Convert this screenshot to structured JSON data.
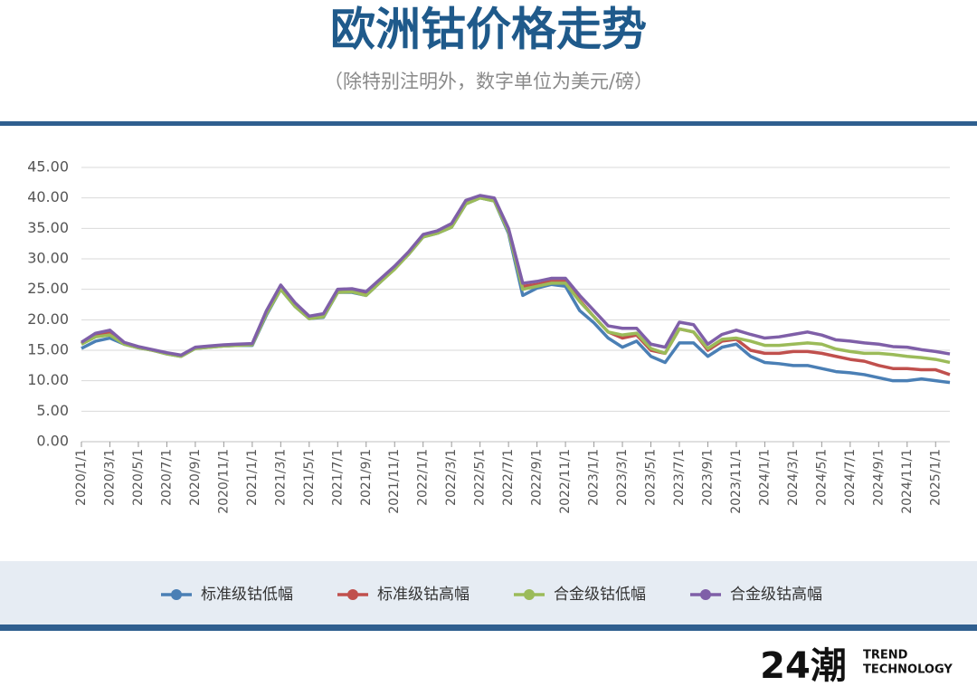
{
  "chart_data": {
    "type": "line",
    "title": "欧洲钴价格走势",
    "subtitle": "（除特别注明外，数字单位为美元/磅）",
    "x": [
      "2020/1/1",
      "2020/2/1",
      "2020/3/1",
      "2020/4/1",
      "2020/5/1",
      "2020/6/1",
      "2020/7/1",
      "2020/8/1",
      "2020/9/1",
      "2020/10/1",
      "2020/11/1",
      "2020/12/1",
      "2021/1/1",
      "2021/2/1",
      "2021/3/1",
      "2021/4/1",
      "2021/5/1",
      "2021/6/1",
      "2021/7/1",
      "2021/8/1",
      "2021/9/1",
      "2021/10/1",
      "2021/11/1",
      "2021/12/1",
      "2022/1/1",
      "2022/2/1",
      "2022/3/1",
      "2022/4/1",
      "2022/5/1",
      "2022/6/1",
      "2022/7/1",
      "2022/8/1",
      "2022/9/1",
      "2022/10/1",
      "2022/11/1",
      "2022/12/1",
      "2023/1/1",
      "2023/2/1",
      "2023/3/1",
      "2023/4/1",
      "2023/5/1",
      "2023/6/1",
      "2023/7/1",
      "2023/8/1",
      "2023/9/1",
      "2023/10/1",
      "2023/11/1",
      "2023/12/1",
      "2024/1/1",
      "2024/2/1",
      "2024/3/1",
      "2024/4/1",
      "2024/5/1",
      "2024/6/1",
      "2024/7/1",
      "2024/8/1",
      "2024/9/1",
      "2024/10/1",
      "2024/11/1",
      "2024/12/1",
      "2025/1/1",
      "2025/2/1"
    ],
    "xlim": [
      "2020/1/1",
      "2025/2/1"
    ],
    "xticks": [
      "2020/1/1",
      "2020/3/1",
      "2020/5/1",
      "2020/7/1",
      "2020/9/1",
      "2020/11/1",
      "2021/1/1",
      "2021/3/1",
      "2021/5/1",
      "2021/7/1",
      "2021/9/1",
      "2021/11/1",
      "2022/1/1",
      "2022/3/1",
      "2022/5/1",
      "2022/7/1",
      "2022/9/1",
      "2022/11/1",
      "2023/1/1",
      "2023/3/1",
      "2023/5/1",
      "2023/7/1",
      "2023/9/1",
      "2023/11/1",
      "2024/1/1",
      "2024/3/1",
      "2024/5/1",
      "2024/7/1",
      "2024/9/1",
      "2024/11/1",
      "2025/1/1"
    ],
    "ylim": [
      0,
      45
    ],
    "yticks": [
      {
        "value": 0,
        "label": "0.00"
      },
      {
        "value": 5,
        "label": "5.00"
      },
      {
        "value": 10,
        "label": "10.00"
      },
      {
        "value": 15,
        "label": "15.00"
      },
      {
        "value": 20,
        "label": "20.00"
      },
      {
        "value": 25,
        "label": "25.00"
      },
      {
        "value": 30,
        "label": "30.00"
      },
      {
        "value": 35,
        "label": "35.00"
      },
      {
        "value": 40,
        "label": "40.00"
      },
      {
        "value": 45,
        "label": "45.00"
      }
    ],
    "grid": true,
    "legend": "bottom",
    "series": [
      {
        "name": "标准级钴低幅",
        "color": "#4a7fb5",
        "values": [
          15.3,
          16.5,
          17.0,
          16.0,
          15.4,
          15.0,
          14.4,
          14.0,
          15.3,
          15.5,
          15.7,
          15.8,
          15.8,
          20.8,
          25.0,
          22.2,
          20.2,
          20.4,
          24.5,
          24.5,
          24.0,
          26.2,
          28.4,
          30.8,
          33.6,
          34.2,
          35.2,
          39.0,
          40.0,
          39.5,
          34.2,
          24.0,
          25.2,
          25.8,
          25.5,
          21.5,
          19.5,
          17.0,
          15.5,
          16.5,
          14.0,
          13.0,
          16.2,
          16.2,
          14.0,
          15.5,
          16.0,
          14.0,
          13.0,
          12.8,
          12.5,
          12.5,
          12.0,
          11.5,
          11.3,
          11.0,
          10.5,
          10.0,
          10.0,
          10.3,
          10.0,
          9.7
        ]
      },
      {
        "name": "标准级钴高幅",
        "color": "#c0504d",
        "values": [
          16.1,
          17.5,
          17.9,
          16.2,
          15.5,
          15.0,
          14.5,
          14.1,
          15.4,
          15.6,
          15.8,
          15.9,
          16.0,
          21.2,
          25.3,
          22.5,
          20.4,
          20.8,
          24.8,
          24.9,
          24.3,
          26.5,
          28.6,
          31.0,
          33.8,
          34.4,
          35.5,
          39.3,
          40.2,
          39.8,
          34.8,
          25.5,
          25.8,
          26.3,
          26.3,
          23.2,
          20.5,
          18.0,
          17.0,
          17.5,
          15.0,
          14.5,
          18.5,
          18.0,
          15.0,
          16.5,
          16.8,
          15.0,
          14.5,
          14.5,
          14.8,
          14.8,
          14.5,
          14.0,
          13.5,
          13.2,
          12.5,
          12.0,
          12.0,
          11.8,
          11.8,
          11.0
        ]
      },
      {
        "name": "合金级钴低幅",
        "color": "#9bbb59",
        "values": [
          16.0,
          17.2,
          17.5,
          16.0,
          15.4,
          15.0,
          14.4,
          14.0,
          15.3,
          15.5,
          15.7,
          15.8,
          15.9,
          21.0,
          25.0,
          22.2,
          20.2,
          20.5,
          24.5,
          24.6,
          24.0,
          26.2,
          28.3,
          30.8,
          33.6,
          34.2,
          35.2,
          39.0,
          40.0,
          39.5,
          34.5,
          25.0,
          25.5,
          26.0,
          26.0,
          23.0,
          20.5,
          18.0,
          17.5,
          17.8,
          15.3,
          14.5,
          18.5,
          18.0,
          15.3,
          16.8,
          17.0,
          16.5,
          15.8,
          15.8,
          16.0,
          16.2,
          16.0,
          15.2,
          14.8,
          14.5,
          14.5,
          14.3,
          14.0,
          13.8,
          13.5,
          13.0
        ]
      },
      {
        "name": "合金级钴高幅",
        "color": "#7f5fa8",
        "values": [
          16.3,
          17.8,
          18.3,
          16.3,
          15.6,
          15.1,
          14.6,
          14.2,
          15.5,
          15.7,
          15.9,
          16.0,
          16.1,
          21.5,
          25.7,
          22.8,
          20.6,
          21.0,
          25.0,
          25.1,
          24.6,
          26.7,
          28.8,
          31.2,
          34.0,
          34.6,
          35.8,
          39.6,
          40.4,
          40.0,
          35.0,
          26.0,
          26.3,
          26.8,
          26.8,
          24.0,
          21.5,
          19.0,
          18.6,
          18.6,
          16.0,
          15.5,
          19.6,
          19.2,
          16.0,
          17.6,
          18.3,
          17.6,
          17.0,
          17.2,
          17.6,
          18.0,
          17.5,
          16.7,
          16.5,
          16.2,
          16.0,
          15.6,
          15.5,
          15.1,
          14.8,
          14.4
        ]
      }
    ]
  },
  "brand": {
    "mark": "24潮",
    "line1": "TREND",
    "line2": "TECHNOLOGY"
  }
}
